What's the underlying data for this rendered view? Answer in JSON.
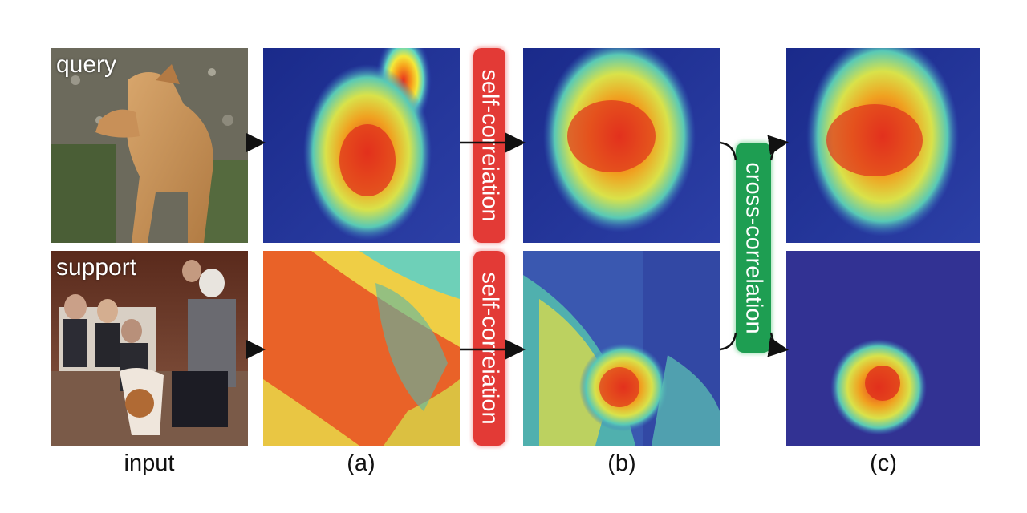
{
  "rows": {
    "query_label": "query",
    "support_label": "support"
  },
  "captions": {
    "input": "input",
    "a": "(a)",
    "b": "(b)",
    "c": "(c)"
  },
  "blocks": {
    "self_top": "self-correiation",
    "self_bottom": "self-correiation",
    "cross": "cross-correlation"
  },
  "colors": {
    "self_block": "#e33a36",
    "cross_block": "#1e9e52",
    "arrow": "#111111"
  }
}
